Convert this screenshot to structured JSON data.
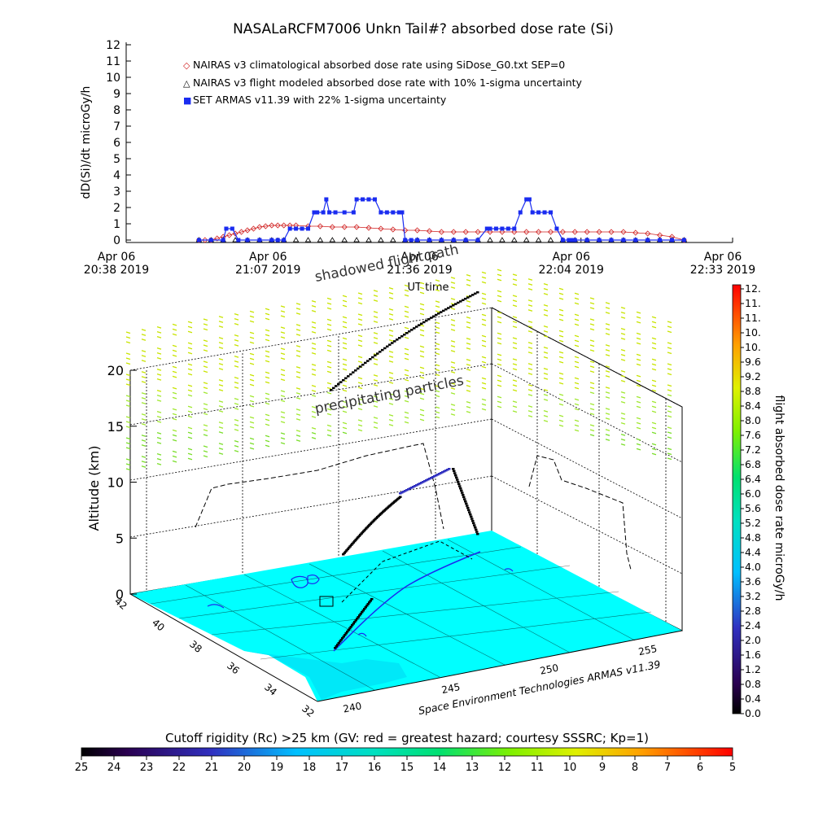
{
  "title": "NASALaRCFM7006  Unkn Tail#? absorbed dose rate (Si)",
  "chart_data": [
    {
      "type": "line",
      "ylabel": "dD(Si)/dt microGy/h",
      "xlabel": "UT time",
      "ylim": [
        0,
        12
      ],
      "y_ticks": [
        0,
        1,
        2,
        3,
        4,
        5,
        6,
        7,
        8,
        9,
        10,
        11,
        12
      ],
      "x_ticks": [
        {
          "l1": "Apr 06",
          "l2": "20:38 2019"
        },
        {
          "l1": "Apr 06",
          "l2": "21:07 2019"
        },
        {
          "l1": "Apr 06",
          "l2": "21:36 2019"
        },
        {
          "l1": "Apr 06",
          "l2": "22:04 2019"
        },
        {
          "l1": "Apr 06",
          "l2": "22:33 2019"
        }
      ],
      "legend": [
        "NAIRAS v3 climatological absorbed dose rate using SiDose_G0.txt SEP=0",
        "NAIRAS v3 flight modeled absorbed dose rate with 10% 1-sigma uncertainty",
        "SET ARMAS v11.39 with 22% 1-sigma uncertainty"
      ],
      "legend_placement": "top-left",
      "series": [
        {
          "name": "NAIRAS v3 climatological absorbed dose rate using SiDose_G0.txt SEP=0",
          "color": "#d02020",
          "marker": "diamond",
          "x": [
            0.12,
            0.13,
            0.14,
            0.15,
            0.16,
            0.17,
            0.18,
            0.19,
            0.2,
            0.21,
            0.22,
            0.23,
            0.24,
            0.25,
            0.26,
            0.27,
            0.28,
            0.3,
            0.32,
            0.34,
            0.36,
            0.38,
            0.4,
            0.42,
            0.44,
            0.46,
            0.48,
            0.5,
            0.52,
            0.54,
            0.56,
            0.58,
            0.6,
            0.62,
            0.64,
            0.66,
            0.68,
            0.7,
            0.72,
            0.74,
            0.76,
            0.78,
            0.8,
            0.82,
            0.84,
            0.86,
            0.88,
            0.9,
            0.92
          ],
          "values": [
            0,
            0,
            0,
            0.1,
            0.2,
            0.3,
            0.4,
            0.5,
            0.6,
            0.7,
            0.8,
            0.85,
            0.9,
            0.9,
            0.9,
            0.9,
            0.9,
            0.85,
            0.85,
            0.8,
            0.8,
            0.8,
            0.75,
            0.7,
            0.65,
            0.6,
            0.6,
            0.55,
            0.5,
            0.5,
            0.5,
            0.5,
            0.5,
            0.5,
            0.5,
            0.5,
            0.5,
            0.5,
            0.5,
            0.5,
            0.5,
            0.5,
            0.5,
            0.5,
            0.45,
            0.4,
            0.3,
            0.2,
            0
          ]
        },
        {
          "name": "NAIRAS v3 flight modeled absorbed dose rate with 10% 1-sigma uncertainty",
          "color": "#000000",
          "marker": "triangle",
          "x": [
            0.12,
            0.14,
            0.16,
            0.18,
            0.2,
            0.22,
            0.24,
            0.26,
            0.28,
            0.3,
            0.32,
            0.34,
            0.36,
            0.38,
            0.4,
            0.42,
            0.44,
            0.46,
            0.48,
            0.5,
            0.52,
            0.54,
            0.56,
            0.58,
            0.6,
            0.62,
            0.64,
            0.66,
            0.68,
            0.7,
            0.72,
            0.74,
            0.76,
            0.78,
            0.8,
            0.82,
            0.84,
            0.86,
            0.88,
            0.9,
            0.92
          ],
          "values": [
            0,
            0,
            0,
            0,
            0,
            0,
            0,
            0,
            0,
            0,
            0,
            0,
            0,
            0,
            0,
            0,
            0,
            0,
            0,
            0,
            0,
            0,
            0,
            0,
            0,
            0,
            0,
            0,
            0,
            0,
            0,
            0,
            0,
            0,
            0,
            0,
            0,
            0,
            0,
            0,
            0
          ]
        },
        {
          "name": "SET ARMAS v11.39 with 22% 1-sigma uncertainty",
          "color": "#1a2cf0",
          "marker": "square",
          "x": [
            0.12,
            0.14,
            0.16,
            0.165,
            0.175,
            0.185,
            0.2,
            0.22,
            0.24,
            0.25,
            0.26,
            0.27,
            0.28,
            0.29,
            0.3,
            0.31,
            0.315,
            0.325,
            0.33,
            0.335,
            0.345,
            0.36,
            0.375,
            0.38,
            0.39,
            0.4,
            0.41,
            0.42,
            0.43,
            0.44,
            0.45,
            0.455,
            0.46,
            0.47,
            0.48,
            0.5,
            0.52,
            0.54,
            0.56,
            0.58,
            0.595,
            0.6,
            0.61,
            0.62,
            0.63,
            0.64,
            0.65,
            0.66,
            0.665,
            0.67,
            0.68,
            0.69,
            0.7,
            0.71,
            0.72,
            0.73,
            0.735,
            0.74,
            0.76,
            0.78,
            0.8,
            0.82,
            0.84,
            0.86,
            0.88,
            0.9,
            0.92
          ],
          "values": [
            0,
            0,
            0,
            0.7,
            0.7,
            0,
            0,
            0,
            0,
            0,
            0,
            0.7,
            0.7,
            0.7,
            0.7,
            1.7,
            1.7,
            1.7,
            2.5,
            1.7,
            1.7,
            1.7,
            1.7,
            2.5,
            2.5,
            2.5,
            2.5,
            1.7,
            1.7,
            1.7,
            1.7,
            1.7,
            0,
            0,
            0,
            0,
            0,
            0,
            0,
            0,
            0.7,
            0.7,
            0.7,
            0.7,
            0.7,
            0.7,
            1.7,
            2.5,
            2.5,
            1.7,
            1.7,
            1.7,
            1.7,
            0.7,
            0,
            0,
            0,
            0,
            0,
            0,
            0,
            0,
            0,
            0,
            0,
            0,
            0
          ]
        }
      ]
    },
    {
      "type": "scatter",
      "title": "",
      "zlabel": "Altitude (km)",
      "z_ticks": [
        0,
        5,
        10,
        15,
        20
      ],
      "lat_ticks": [
        "42",
        "40",
        "38",
        "36",
        "34",
        "32"
      ],
      "lon_ticks": [
        "240",
        "245",
        "250",
        "255"
      ],
      "footer": "Space Environment Technologies ARMAS v11.39",
      "annotations": [
        "shadowed flight path",
        "precipitating particles"
      ],
      "colorbar_right": {
        "label": "flight absorbed dose rate microGy/h",
        "ticks": [
          "12.",
          "11.",
          "11.",
          "10.",
          "10.",
          "9.6",
          "9.2",
          "8.8",
          "8.4",
          "8.0",
          "7.6",
          "7.2",
          "6.8",
          "6.4",
          "6.0",
          "5.6",
          "5.2",
          "4.8",
          "4.4",
          "4.0",
          "3.6",
          "3.2",
          "2.8",
          "2.4",
          "2.0",
          "1.6",
          "1.2",
          "0.8",
          "0.4",
          "0.0"
        ]
      },
      "colorbar_bottom": {
        "label": "Cutoff rigidity (Rc) >25 km (GV: red = greatest hazard; courtesy SSSRC; Kp=1)",
        "ticks": [
          "25",
          "24",
          "23",
          "22",
          "21",
          "20",
          "19",
          "18",
          "17",
          "16",
          "15",
          "14",
          "13",
          "12",
          "11",
          "10",
          "9",
          "8",
          "7",
          "6",
          "5"
        ]
      },
      "ground_color": "#00ffff"
    }
  ]
}
